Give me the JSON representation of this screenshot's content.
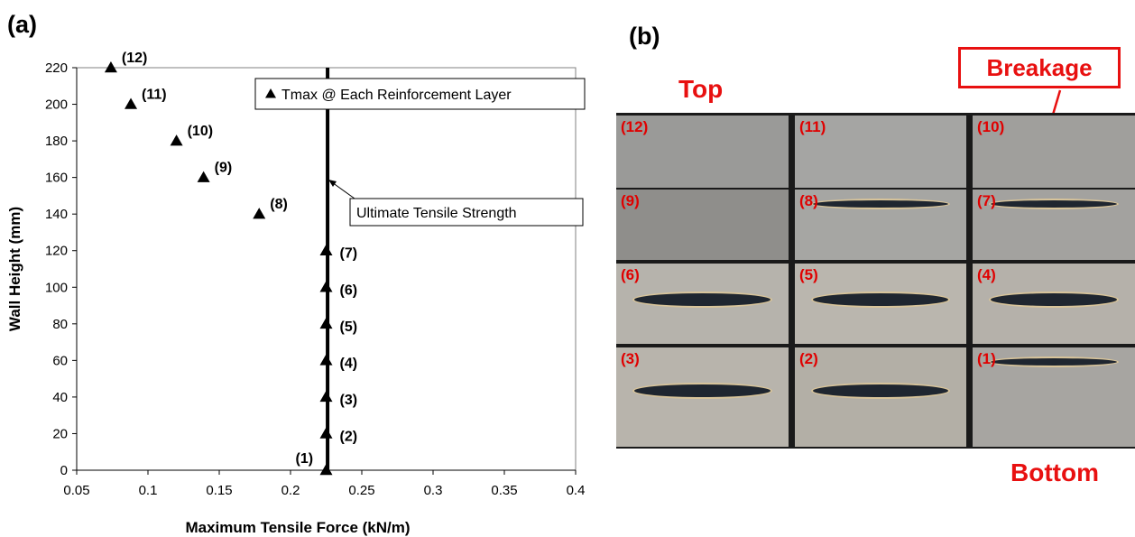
{
  "panel_a_label": "(a)",
  "panel_b_label": "(b)",
  "chart_data": {
    "type": "scatter",
    "xlabel": "Maximum Tensile Force (kN/m)",
    "ylabel": "Wall Height (mm)",
    "xlim": [
      0.05,
      0.4
    ],
    "ylim": [
      0,
      220
    ],
    "x_ticks": [
      "0.05",
      "0.1",
      "0.15",
      "0.2",
      "0.25",
      "0.3",
      "0.35",
      "0.4"
    ],
    "y_ticks": [
      "0",
      "20",
      "40",
      "60",
      "80",
      "100",
      "120",
      "140",
      "160",
      "180",
      "200",
      "220"
    ],
    "grid": false,
    "series": [
      {
        "name": "Tmax @ Each Reinforcement Layer",
        "points": [
          {
            "x": 0.225,
            "y": 0,
            "label": "(1)"
          },
          {
            "x": 0.225,
            "y": 20,
            "label": "(2)"
          },
          {
            "x": 0.225,
            "y": 40,
            "label": "(3)"
          },
          {
            "x": 0.225,
            "y": 60,
            "label": "(4)"
          },
          {
            "x": 0.225,
            "y": 80,
            "label": "(5)"
          },
          {
            "x": 0.225,
            "y": 100,
            "label": "(6)"
          },
          {
            "x": 0.225,
            "y": 120,
            "label": "(7)"
          },
          {
            "x": 0.178,
            "y": 140,
            "label": "(8)"
          },
          {
            "x": 0.139,
            "y": 160,
            "label": "(9)"
          },
          {
            "x": 0.12,
            "y": 180,
            "label": "(10)"
          },
          {
            "x": 0.088,
            "y": 200,
            "label": "(11)"
          },
          {
            "x": 0.074,
            "y": 220,
            "label": "(12)"
          }
        ]
      }
    ],
    "reference_line": {
      "x": 0.226,
      "label": "Ultimate Tensile Strength"
    },
    "legend_placement": "top-right"
  },
  "photos": {
    "top_label": "Top",
    "bottom_label": "Bottom",
    "breakage_label": "Breakage",
    "cells": [
      "(12)",
      "(11)",
      "(10)",
      "(9)",
      "(8)",
      "(7)",
      "(6)",
      "(5)",
      "(4)",
      "(3)",
      "(2)",
      "(1)"
    ]
  }
}
